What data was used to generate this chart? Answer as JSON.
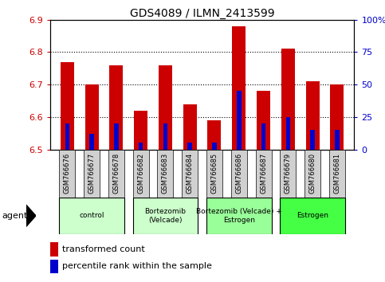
{
  "title": "GDS4089 / ILMN_2413599",
  "samples": [
    "GSM766676",
    "GSM766677",
    "GSM766678",
    "GSM766682",
    "GSM766683",
    "GSM766684",
    "GSM766685",
    "GSM766686",
    "GSM766687",
    "GSM766679",
    "GSM766680",
    "GSM766681"
  ],
  "transformed_counts": [
    6.77,
    6.7,
    6.76,
    6.62,
    6.76,
    6.64,
    6.59,
    6.88,
    6.68,
    6.81,
    6.71,
    6.7
  ],
  "percentile_ranks": [
    20,
    12,
    20,
    5,
    20,
    5,
    5,
    45,
    20,
    25,
    15,
    15
  ],
  "bar_bottom": 6.5,
  "ylim_left": [
    6.5,
    6.9
  ],
  "ylim_right": [
    0,
    100
  ],
  "yticks_left": [
    6.5,
    6.6,
    6.7,
    6.8,
    6.9
  ],
  "yticks_right": [
    0,
    25,
    50,
    75,
    100
  ],
  "ytick_labels_right": [
    "0",
    "25",
    "50",
    "75",
    "100%"
  ],
  "group_data": [
    {
      "label": "control",
      "indices": [
        0,
        1,
        2
      ],
      "color": "#ccffcc"
    },
    {
      "label": "Bortezomib\n(Velcade)",
      "indices": [
        3,
        4,
        5
      ],
      "color": "#ccffcc"
    },
    {
      "label": "Bortezomib (Velcade) +\nEstrogen",
      "indices": [
        6,
        7,
        8
      ],
      "color": "#99ff99"
    },
    {
      "label": "Estrogen",
      "indices": [
        9,
        10,
        11
      ],
      "color": "#44ff44"
    }
  ],
  "bar_color": "#cc0000",
  "percentile_color": "#0000cc",
  "tick_color_left": "#cc0000",
  "tick_color_right": "#0000cc",
  "agent_label": "agent",
  "legend_bar_label": "transformed count",
  "legend_pct_label": "percentile rank within the sample",
  "bar_width": 0.55,
  "blue_bar_width": 0.18
}
